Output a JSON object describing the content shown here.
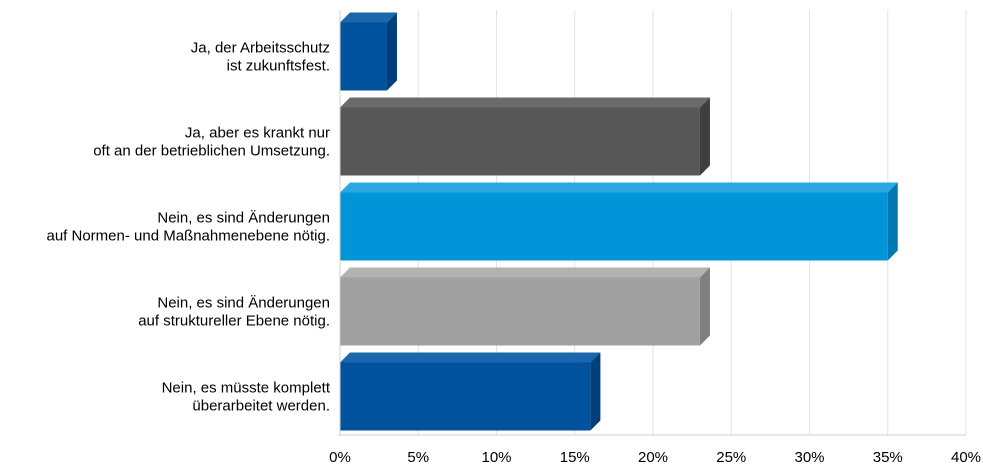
{
  "chart_data": {
    "type": "bar",
    "orientation": "horizontal",
    "categories": [
      [
        "Ja, der Arbeitsschutz",
        "ist zukunftsfest."
      ],
      [
        "Ja, aber es krankt nur",
        "oft an der betrieblichen Umsetzung."
      ],
      [
        "Nein, es sind Änderungen",
        "auf Normen- und Maßnahmenebene nötig."
      ],
      [
        "Nein, es sind Änderungen",
        "auf struktureller Ebene nötig."
      ],
      [
        "Nein, es müsste komplett",
        "überarbeitet werden."
      ]
    ],
    "values": [
      3,
      23,
      35,
      23,
      16
    ],
    "colors": [
      "#00529c",
      "#575757",
      "#0095d9",
      "#a0a0a0",
      "#00529c"
    ],
    "side_colors": [
      "#003f7a",
      "#3e3e3e",
      "#0077b3",
      "#7f7f7f",
      "#003f7a"
    ],
    "top_colors": [
      "#1a67ad",
      "#6a6a6a",
      "#2ba8e4",
      "#b2b2b2",
      "#1a67ad"
    ],
    "xlim": [
      0,
      40
    ],
    "xticks": [
      0,
      5,
      10,
      15,
      20,
      25,
      30,
      35,
      40
    ],
    "xtick_labels": [
      "0%",
      "5%",
      "10%",
      "15%",
      "20%",
      "25%",
      "30%",
      "35%",
      "40%"
    ],
    "grid": true,
    "legend": "none",
    "title": "",
    "xlabel": "",
    "ylabel": ""
  }
}
